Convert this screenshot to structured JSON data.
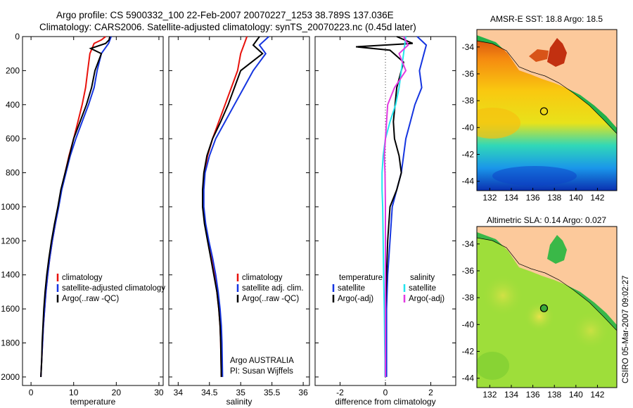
{
  "header": {
    "line1": "Argo profile: CS 5900332_100 22-Feb-2007 20070227_1253 38.789S 137.036E",
    "line2": "Climatology: CARS2006. Satellite-adjusted climatology: synTS_20070223.nc (0.45d later)"
  },
  "credit": {
    "side": "CSIRO 05-Mar-2007 09:02:27",
    "agency": "Argo AUSTRALIA",
    "pi": "PI: Susan Wijffels"
  },
  "colors": {
    "climatology": "#e8120c",
    "satellite": "#1535e0",
    "argo": "#000000",
    "sat_salinity": "#22e4ee",
    "argo_salinity": "#e23ae0",
    "land": "#fcc99b"
  },
  "chart_data": [
    {
      "type": "line",
      "xlabel": "temperature",
      "ylim": [
        2050,
        0
      ],
      "xlim": [
        -2,
        31
      ],
      "xticks": [
        0,
        10,
        20,
        30
      ],
      "yticks": [
        0,
        200,
        400,
        600,
        800,
        1000,
        1200,
        1400,
        1600,
        1800,
        2000
      ],
      "legend": [
        "climatology",
        "satellite-adjusted climatology",
        "Argo(..raw -QC)"
      ],
      "series": [
        {
          "name": "climatology",
          "color": "#e8120c",
          "x": [
            17.5,
            16.5,
            14.8,
            13.8,
            13.3,
            12.8,
            12.0,
            11.0,
            10.0,
            8.9,
            8.0,
            7.1,
            6.4,
            5.7,
            5.0,
            4.4,
            3.9,
            3.5,
            3.2,
            2.9,
            2.7,
            2.6,
            2.5,
            2.4,
            2.3
          ],
          "y": [
            0,
            20,
            40,
            100,
            200,
            300,
            400,
            500,
            600,
            700,
            800,
            900,
            1000,
            1100,
            1200,
            1300,
            1400,
            1500,
            1600,
            1700,
            1800,
            1850,
            1900,
            1950,
            2000
          ]
        },
        {
          "name": "satellite-adjusted climatology",
          "color": "#1535e0",
          "x": [
            18.8,
            18.5,
            18.2,
            16.5,
            15.5,
            14.8,
            13.5,
            12.0,
            10.5,
            9.2,
            8.2,
            7.2,
            6.5,
            5.7,
            5.0,
            4.4,
            3.9,
            3.5,
            3.2,
            2.9,
            2.7,
            2.6,
            2.5,
            2.4,
            2.3
          ],
          "y": [
            0,
            20,
            40,
            100,
            200,
            300,
            400,
            500,
            600,
            700,
            800,
            900,
            1000,
            1100,
            1200,
            1300,
            1400,
            1500,
            1600,
            1700,
            1800,
            1850,
            1900,
            1950,
            2000
          ]
        },
        {
          "name": "Argo(..raw -QC)",
          "color": "#000000",
          "x": [
            18.5,
            18.3,
            17.5,
            14.0,
            16.5,
            15.0,
            14.2,
            13.0,
            11.5,
            10.0,
            9.0,
            8.0,
            7.0,
            6.3,
            5.5,
            4.8,
            4.2,
            3.7,
            3.3,
            3.0,
            2.8,
            2.6,
            2.5,
            2.4,
            2.3
          ],
          "y": [
            0,
            20,
            40,
            70,
            100,
            200,
            300,
            400,
            500,
            600,
            700,
            800,
            900,
            1000,
            1100,
            1200,
            1300,
            1400,
            1500,
            1600,
            1700,
            1800,
            1900,
            1950,
            2000
          ]
        }
      ]
    },
    {
      "type": "line",
      "xlabel": "salinity",
      "ylim": [
        2050,
        0
      ],
      "xlim": [
        33.85,
        36.1
      ],
      "xticks": [
        34,
        34.5,
        35,
        35.5,
        36
      ],
      "legend": [
        "climatology",
        "satellite adj. clim.",
        "Argo(..raw -QC)"
      ],
      "series": [
        {
          "name": "climatology",
          "color": "#e8120c",
          "x": [
            35.1,
            35.05,
            35.0,
            34.95,
            34.85,
            34.75,
            34.65,
            34.55,
            34.47,
            34.42,
            34.4,
            34.4,
            34.43,
            34.48,
            34.53,
            34.58,
            34.62,
            34.65,
            34.67,
            34.68,
            34.69
          ],
          "y": [
            0,
            50,
            100,
            200,
            300,
            400,
            500,
            600,
            700,
            800,
            900,
            1000,
            1100,
            1200,
            1300,
            1400,
            1500,
            1600,
            1700,
            1800,
            2000
          ]
        },
        {
          "name": "satellite adj. clim.",
          "color": "#1535e0",
          "x": [
            35.45,
            35.3,
            35.4,
            35.2,
            35.05,
            34.9,
            34.75,
            34.6,
            34.5,
            34.43,
            34.41,
            34.41,
            34.44,
            34.49,
            34.55,
            34.6,
            34.64,
            34.67,
            34.69,
            34.7,
            34.71
          ],
          "y": [
            0,
            50,
            100,
            200,
            300,
            400,
            500,
            600,
            700,
            800,
            900,
            1000,
            1100,
            1200,
            1300,
            1400,
            1500,
            1600,
            1700,
            1800,
            2000
          ]
        },
        {
          "name": "Argo(..raw -QC)",
          "color": "#000000",
          "x": [
            35.3,
            35.2,
            35.35,
            35.0,
            34.9,
            34.8,
            34.68,
            34.55,
            34.46,
            34.41,
            34.39,
            34.39,
            34.42,
            34.47,
            34.52,
            34.57,
            34.62,
            34.65,
            34.67,
            34.68,
            34.69
          ],
          "y": [
            0,
            50,
            100,
            200,
            300,
            400,
            500,
            600,
            700,
            800,
            900,
            1000,
            1100,
            1200,
            1300,
            1400,
            1500,
            1600,
            1700,
            1800,
            2000
          ]
        }
      ]
    },
    {
      "type": "line",
      "xlabel": "difference from climatology",
      "ylim": [
        2050,
        0
      ],
      "xlim": [
        -3.1,
        3.1
      ],
      "xticks": [
        -2,
        0,
        2
      ],
      "legend_temperature": [
        "temperature",
        "satellite",
        "Argo(-adj)"
      ],
      "legend_salinity": [
        "salinity",
        "satellite",
        "Argo(-adj)"
      ],
      "series": [
        {
          "name": "satellite",
          "color": "#1535e0",
          "x": [
            1.4,
            1.8,
            1.7,
            1.5,
            1.6,
            1.3,
            1.1,
            0.9,
            0.8,
            0.7,
            0.5,
            0.3,
            0.2,
            0.1,
            0.05,
            0.05,
            0.05,
            0.05,
            0.05
          ],
          "y": [
            0,
            50,
            100,
            200,
            300,
            400,
            500,
            600,
            700,
            800,
            900,
            1000,
            1200,
            1400,
            1600,
            1700,
            1800,
            1900,
            2000
          ]
        },
        {
          "name": "Argo(-adj)",
          "color": "#000000",
          "x": [
            0.5,
            1.2,
            -1.3,
            0.2,
            0.8,
            0.5,
            0.35,
            0.4,
            0.6,
            0.7,
            0.5,
            0.2,
            0.1,
            0.05,
            0.0,
            0.0,
            0.0,
            0.0,
            0.0
          ],
          "y": [
            0,
            40,
            60,
            80,
            150,
            300,
            500,
            600,
            700,
            800,
            900,
            1000,
            1200,
            1400,
            1600,
            1700,
            1800,
            1900,
            2000
          ]
        },
        {
          "name": "satellite (salinity)",
          "color": "#22e4ee",
          "x": [
            0.9,
            0.8,
            0.7,
            0.6,
            0.45,
            0.2,
            0.0,
            -0.1,
            -0.15,
            -0.15,
            -0.12,
            -0.1,
            -0.08,
            -0.05,
            -0.03,
            -0.02,
            -0.02
          ],
          "y": [
            0,
            100,
            200,
            300,
            400,
            500,
            600,
            700,
            800,
            900,
            1000,
            1200,
            1400,
            1600,
            1800,
            1900,
            2000
          ]
        },
        {
          "name": "Argo(-adj) (salinity)",
          "color": "#e23ae0",
          "x": [
            0.8,
            1.0,
            0.6,
            0.9,
            0.4,
            0.1,
            0.05,
            0.0,
            -0.05,
            -0.02,
            0.0,
            0.0,
            0.0,
            0.0
          ],
          "y": [
            0,
            50,
            100,
            200,
            300,
            400,
            500,
            600,
            700,
            800,
            1000,
            1400,
            1800,
            2000
          ]
        }
      ]
    },
    {
      "type": "heatmap",
      "title": "AMSR-E SST: 18.8 Argo: 18.5",
      "xlim": [
        130.8,
        143.8
      ],
      "ylim": [
        -44.7,
        -32.7
      ],
      "xticks": [
        132,
        134,
        136,
        138,
        140,
        142
      ],
      "yticks": [
        -34,
        -36,
        -38,
        -40,
        -42,
        -44
      ],
      "float_position": {
        "lon": 137.036,
        "lat": -38.789
      }
    },
    {
      "type": "heatmap",
      "title": "Altimetric SLA: 0.14 Argo: 0.027",
      "xlim": [
        130.8,
        143.8
      ],
      "ylim": [
        -44.7,
        -32.7
      ],
      "xticks": [
        132,
        134,
        136,
        138,
        140,
        142
      ],
      "yticks": [
        -34,
        -36,
        -38,
        -40,
        -42,
        -44
      ],
      "float_position": {
        "lon": 137.036,
        "lat": -38.789
      }
    }
  ]
}
